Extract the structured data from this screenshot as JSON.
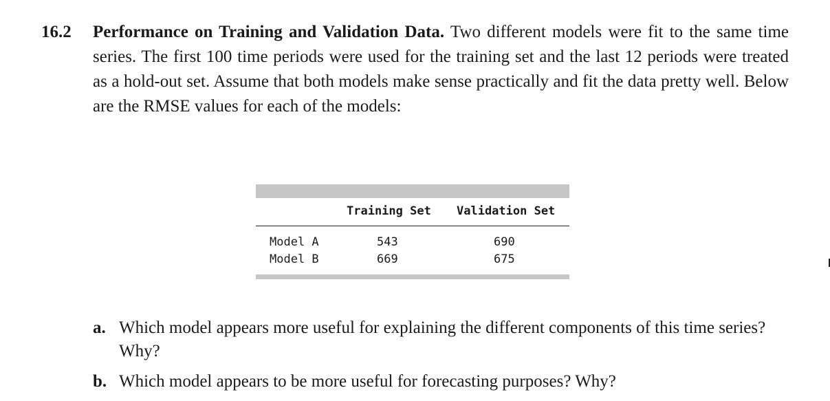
{
  "problem": {
    "number": "16.2",
    "title": "Performance on Training and Validation Data.",
    "text": "Two different models were fit to the same time series. The first 100 time periods were used for the training set and the last 12 periods were treated as a hold-out set. Assume that both models make sense practically and fit the data pretty well. Below are the RMSE values for each of the models:"
  },
  "table": {
    "headers": [
      "Training Set",
      "Validation Set"
    ],
    "rows": [
      {
        "model": "Model A",
        "training": "543",
        "validation": "690"
      },
      {
        "model": "Model B",
        "training": "669",
        "validation": "675"
      }
    ]
  },
  "questions": [
    {
      "letter": "a.",
      "text": "Which model appears more useful for explaining the different components of this time series? Why?"
    },
    {
      "letter": "b.",
      "text": "Which model appears to be more useful for forecasting purposes? Why?"
    }
  ]
}
